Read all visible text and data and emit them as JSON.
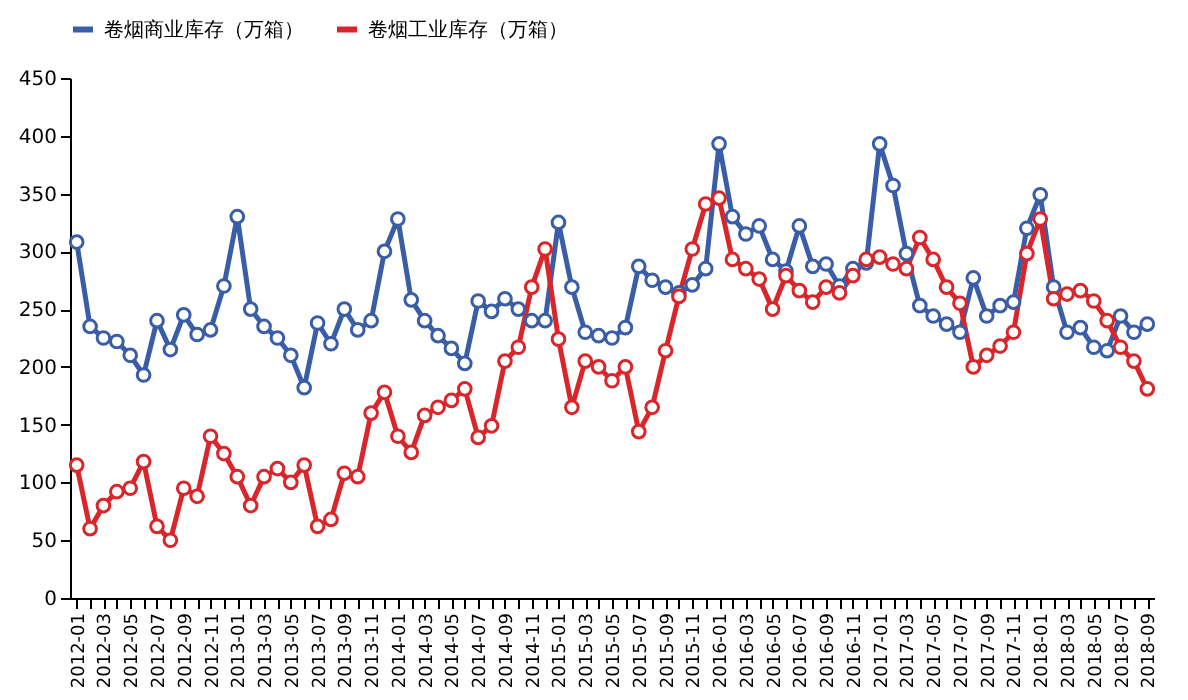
{
  "chart_data": {
    "type": "line",
    "categories": [
      "2012-01",
      null,
      "2012-03",
      null,
      "2012-05",
      null,
      "2012-07",
      null,
      "2012-09",
      null,
      "2012-11",
      null,
      "2013-01",
      null,
      "2013-03",
      null,
      "2013-05",
      null,
      "2013-07",
      null,
      "2013-09",
      null,
      "2013-11",
      null,
      "2014-01",
      null,
      "2014-03",
      null,
      "2014-05",
      null,
      "2014-07",
      null,
      "2014-09",
      null,
      "2014-11",
      null,
      "2015-01",
      null,
      "2015-03",
      null,
      "2015-05",
      null,
      "2015-07",
      null,
      "2015-09",
      null,
      "2015-11",
      null,
      "2016-01",
      null,
      "2016-03",
      null,
      "2016-05",
      null,
      "2016-07",
      null,
      "2016-09",
      null,
      "2016-11",
      null,
      "2017-01",
      null,
      "2017-03",
      null,
      "2017-05",
      null,
      "2017-07",
      null,
      "2017-09",
      null,
      "2017-11",
      null,
      "2018-01",
      null,
      "2018-03",
      null,
      "2018-05",
      null,
      "2018-07",
      null,
      "2018-09"
    ],
    "series": [
      {
        "name": "卷烟商业库存（万箱）",
        "color": "#3a5da8",
        "values": [
          308,
          235,
          225,
          222,
          210,
          193,
          240,
          215,
          245,
          228,
          232,
          270,
          330,
          250,
          235,
          225,
          210,
          182,
          238,
          220,
          250,
          232,
          240,
          300,
          328,
          258,
          240,
          227,
          216,
          203,
          257,
          248,
          259,
          250,
          240,
          240,
          325,
          269,
          230,
          227,
          225,
          234,
          287,
          275,
          269,
          264,
          271,
          285,
          393,
          330,
          315,
          322,
          293,
          283,
          322,
          287,
          289,
          270,
          285,
          290,
          393,
          357,
          298,
          253,
          244,
          237,
          230,
          277,
          244,
          253,
          256,
          320,
          349,
          269,
          230,
          234,
          217,
          214,
          244,
          230,
          237
        ]
      },
      {
        "name": "卷烟工业库存（万箱）",
        "color": "#d9262b",
        "values": [
          115,
          60,
          80,
          92,
          95,
          118,
          62,
          50,
          95,
          88,
          140,
          125,
          105,
          80,
          105,
          112,
          100,
          115,
          62,
          68,
          108,
          105,
          160,
          178,
          140,
          126,
          158,
          165,
          171,
          181,
          139,
          149,
          205,
          217,
          269,
          302,
          224,
          165,
          205,
          200,
          188,
          200,
          144,
          165,
          214,
          261,
          302,
          341,
          346,
          293,
          285,
          276,
          250,
          279,
          266,
          256,
          269,
          264,
          279,
          293,
          295,
          289,
          285,
          312,
          293,
          269,
          255,
          200,
          210,
          218,
          230,
          298,
          328,
          259,
          263,
          266,
          257,
          240,
          217,
          205,
          181
        ]
      }
    ],
    "ylim": [
      0,
      450
    ],
    "yticks": [
      0,
      50,
      100,
      150,
      200,
      250,
      300,
      350,
      400,
      450
    ],
    "grid": false,
    "legend": "top",
    "marker": "circle",
    "line_style": "solid"
  }
}
